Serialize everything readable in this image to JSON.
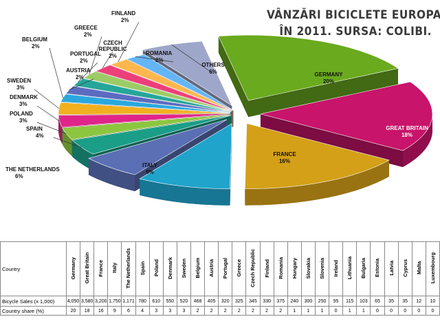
{
  "title": {
    "line1": "VÂNZĂRI BICICLETE EUROPA",
    "line2": "ÎN 2011. SURSA: COLIBI."
  },
  "chart_data": {
    "type": "pie",
    "slices": [
      {
        "name": "GERMANY",
        "value": 20,
        "label": "20%",
        "color": "#6aaa1e"
      },
      {
        "name": "GREAT BRITAIN",
        "value": 18,
        "label": "18%",
        "color": "#c8146a"
      },
      {
        "name": "FRANCE",
        "value": 16,
        "label": "16%",
        "color": "#d4a017"
      },
      {
        "name": "ITALY",
        "value": 9,
        "label": "9%",
        "color": "#20a4cc"
      },
      {
        "name": "THE NETHERLANDS",
        "value": 6,
        "label": "6%",
        "color": "#5a6fb4"
      },
      {
        "name": "SPAIN",
        "value": 4,
        "label": "4%",
        "color": "#1a9e88"
      },
      {
        "name": "POLAND",
        "value": 3,
        "label": "3%",
        "color": "#8cc63f"
      },
      {
        "name": "DENMARK",
        "value": 3,
        "label": "3%",
        "color": "#e0258a"
      },
      {
        "name": "SWEDEN",
        "value": 3,
        "label": "3%",
        "color": "#f2b01e"
      },
      {
        "name": "BELGIUM",
        "value": 2,
        "label": "2%",
        "color": "#2aa8de"
      },
      {
        "name": "AUSTRIA",
        "value": 2,
        "label": "2%",
        "color": "#5c6bc0"
      },
      {
        "name": "PORTUGAL",
        "value": 2,
        "label": "2%",
        "color": "#26a69a"
      },
      {
        "name": "GREECE",
        "value": 2,
        "label": "2%",
        "color": "#9ccc65"
      },
      {
        "name": "CZECH REPUBLIC",
        "value": 2,
        "label": "2%",
        "color": "#ec407a"
      },
      {
        "name": "FINLAND",
        "value": 2,
        "label": "2%",
        "color": "#ffb74d"
      },
      {
        "name": "ROMANIA",
        "value": 2,
        "label": "2%",
        "color": "#64b5f6"
      },
      {
        "name": "OTHERS",
        "value": 6,
        "label": "6%",
        "color": "#9ea7c9"
      }
    ]
  },
  "table": {
    "header_label": "Country",
    "countries": [
      "Germany",
      "Great Britain",
      "France",
      "Italy",
      "The Netherlands",
      "Spain",
      "Poland",
      "Denmark",
      "Sweden",
      "Belgium",
      "Austria",
      "Portugal",
      "Greece",
      "Czech Republic",
      "Finland",
      "Romania",
      "Hungary",
      "Slovakia",
      "Slovenia",
      "Ireland",
      "Lithuania",
      "Bulgaria",
      "Estonia",
      "Latvia",
      "Cyprus",
      "Malta",
      "Luxembourg"
    ],
    "rows": [
      {
        "label": "Bicycle Sales (x 1,000)",
        "values": [
          "4,050",
          "3,580",
          "3,200",
          "1,750",
          "1,171",
          "780",
          "610",
          "550",
          "520",
          "468",
          "405",
          "320",
          "325",
          "345",
          "330",
          "375",
          "240",
          "300",
          "250",
          "95",
          "115",
          "103",
          "65",
          "35",
          "35",
          "12",
          "10"
        ]
      },
      {
        "label": "Country share (%)",
        "values": [
          "20",
          "18",
          "16",
          "9",
          "6",
          "4",
          "3",
          "3",
          "3",
          "2",
          "2",
          "2",
          "2",
          "2",
          "2",
          "2",
          "1",
          "1",
          "1",
          "0",
          "1",
          "1",
          "0",
          "0",
          "0",
          "0",
          "0"
        ]
      }
    ]
  }
}
